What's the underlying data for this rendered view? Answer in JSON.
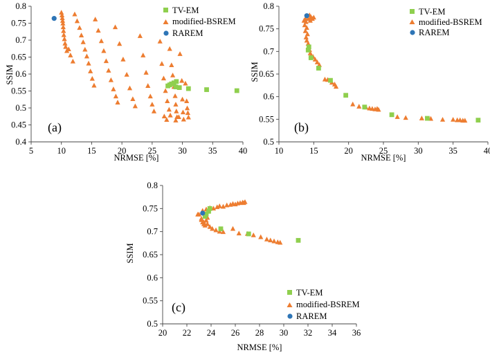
{
  "colors": {
    "tv_em": "#8fcf4e",
    "bsrem": "#ed7d31",
    "rarem": "#2e75b6"
  },
  "chart_data": [
    {
      "type": "scatter",
      "panel_label": "(a)",
      "xlabel": "NRMSE [%]",
      "ylabel": "SSIM",
      "xlim": [
        5,
        40
      ],
      "ylim": [
        0.4,
        0.8
      ],
      "xticks": [
        "5",
        "10",
        "15",
        "20",
        "25",
        "30",
        "35",
        "40"
      ],
      "yticks": [
        "0.4",
        "0.45",
        "0.5",
        "0.55",
        "0.6",
        "0.65",
        "0.7",
        "0.75",
        "0.8"
      ],
      "legend_position": "top-right",
      "series": [
        {
          "name": "TV-EM",
          "marker": "square",
          "color": "#8fcf4e",
          "points": [
            [
              39.0,
              0.551
            ],
            [
              34.0,
              0.554
            ],
            [
              31.0,
              0.557
            ],
            [
              29.5,
              0.56
            ],
            [
              29.0,
              0.578
            ],
            [
              28.6,
              0.574
            ],
            [
              28.2,
              0.571
            ],
            [
              27.9,
              0.568
            ],
            [
              27.6,
              0.565
            ],
            [
              28.9,
              0.562
            ]
          ]
        },
        {
          "name": "modified-BSREM",
          "marker": "triangle",
          "color": "#ed7d31",
          "points": [
            [
              10.0,
              0.781
            ],
            [
              10.1,
              0.773
            ],
            [
              10.15,
              0.765
            ],
            [
              10.2,
              0.757
            ],
            [
              10.25,
              0.749
            ],
            [
              10.3,
              0.738
            ],
            [
              10.35,
              0.727
            ],
            [
              10.4,
              0.715
            ],
            [
              10.5,
              0.703
            ],
            [
              10.6,
              0.69
            ],
            [
              10.7,
              0.68
            ],
            [
              10.9,
              0.668
            ],
            [
              11.2,
              0.673
            ],
            [
              11.5,
              0.655
            ],
            [
              11.9,
              0.637
            ],
            [
              12.2,
              0.776
            ],
            [
              12.6,
              0.756
            ],
            [
              13.0,
              0.736
            ],
            [
              13.3,
              0.714
            ],
            [
              13.6,
              0.694
            ],
            [
              13.9,
              0.672
            ],
            [
              14.2,
              0.652
            ],
            [
              14.5,
              0.631
            ],
            [
              14.8,
              0.608
            ],
            [
              15.1,
              0.586
            ],
            [
              15.4,
              0.566
            ],
            [
              15.6,
              0.761
            ],
            [
              16.1,
              0.728
            ],
            [
              16.6,
              0.697
            ],
            [
              17.0,
              0.668
            ],
            [
              17.4,
              0.638
            ],
            [
              17.8,
              0.61
            ],
            [
              18.2,
              0.582
            ],
            [
              18.6,
              0.555
            ],
            [
              19.0,
              0.534
            ],
            [
              19.3,
              0.516
            ],
            [
              18.9,
              0.738
            ],
            [
              19.6,
              0.689
            ],
            [
              20.2,
              0.643
            ],
            [
              20.8,
              0.598
            ],
            [
              21.3,
              0.558
            ],
            [
              21.8,
              0.526
            ],
            [
              22.2,
              0.505
            ],
            [
              23.0,
              0.712
            ],
            [
              23.5,
              0.655
            ],
            [
              24.0,
              0.604
            ],
            [
              24.3,
              0.565
            ],
            [
              24.7,
              0.534
            ],
            [
              25.0,
              0.51
            ],
            [
              25.3,
              0.49
            ],
            [
              26.3,
              0.696
            ],
            [
              26.6,
              0.63
            ],
            [
              26.9,
              0.587
            ],
            [
              27.2,
              0.55
            ],
            [
              27.5,
              0.52
            ],
            [
              27.8,
              0.495
            ],
            [
              28.0,
              0.478
            ],
            [
              27.4,
              0.465
            ],
            [
              27.0,
              0.475
            ],
            [
              27.9,
              0.674
            ],
            [
              28.2,
              0.626
            ],
            [
              28.4,
              0.596
            ],
            [
              28.6,
              0.562
            ],
            [
              28.8,
              0.535
            ],
            [
              28.9,
              0.51
            ],
            [
              29.0,
              0.49
            ],
            [
              29.1,
              0.473
            ],
            [
              28.9,
              0.463
            ],
            [
              29.6,
              0.659
            ],
            [
              29.9,
              0.58
            ],
            [
              30.0,
              0.525
            ],
            [
              30.1,
              0.487
            ],
            [
              30.2,
              0.466
            ],
            [
              29.4,
              0.473
            ],
            [
              30.5,
              0.572
            ],
            [
              30.7,
              0.52
            ],
            [
              30.8,
              0.499
            ],
            [
              30.9,
              0.485
            ],
            [
              31.0,
              0.472
            ]
          ]
        },
        {
          "name": "RAREM",
          "marker": "circle",
          "color": "#2e75b6",
          "points": [
            [
              8.8,
              0.764
            ]
          ]
        }
      ]
    },
    {
      "type": "scatter",
      "panel_label": "(b)",
      "xlabel": "NRMSE [%]",
      "ylabel": "SSIM",
      "xlim": [
        10,
        40
      ],
      "ylim": [
        0.5,
        0.8
      ],
      "xticks": [
        "10",
        "15",
        "20",
        "25",
        "30",
        "35",
        "40"
      ],
      "yticks": [
        "0.5",
        "0.55",
        "0.6",
        "0.65",
        "0.7",
        "0.75",
        "0.8"
      ],
      "legend_position": "top-right",
      "series": [
        {
          "name": "TV-EM",
          "marker": "square",
          "color": "#8fcf4e",
          "points": [
            [
              38.6,
              0.548
            ],
            [
              31.3,
              0.552
            ],
            [
              26.2,
              0.56
            ],
            [
              22.3,
              0.577
            ],
            [
              19.6,
              0.603
            ],
            [
              17.4,
              0.636
            ],
            [
              15.7,
              0.663
            ],
            [
              14.6,
              0.686
            ],
            [
              14.2,
              0.703
            ],
            [
              14.3,
              0.71
            ]
          ]
        },
        {
          "name": "modified-BSREM",
          "marker": "triangle",
          "color": "#ed7d31",
          "points": [
            [
              13.8,
              0.772
            ],
            [
              13.9,
              0.765
            ],
            [
              13.7,
              0.758
            ],
            [
              14.0,
              0.752
            ],
            [
              13.8,
              0.745
            ],
            [
              14.1,
              0.738
            ],
            [
              13.9,
              0.731
            ],
            [
              14.0,
              0.724
            ],
            [
              14.2,
              0.717
            ],
            [
              14.3,
              0.71
            ],
            [
              14.4,
              0.703
            ],
            [
              14.5,
              0.696
            ],
            [
              14.6,
              0.69
            ],
            [
              14.4,
              0.78
            ],
            [
              14.6,
              0.776
            ],
            [
              14.8,
              0.772
            ],
            [
              14.5,
              0.768
            ],
            [
              15.0,
              0.775
            ],
            [
              14.2,
              0.772
            ],
            [
              13.6,
              0.768
            ],
            [
              14.9,
              0.688
            ],
            [
              15.2,
              0.682
            ],
            [
              15.5,
              0.676
            ],
            [
              15.8,
              0.67
            ],
            [
              16.6,
              0.638
            ],
            [
              17.0,
              0.637
            ],
            [
              17.6,
              0.631
            ],
            [
              18.0,
              0.627
            ],
            [
              18.2,
              0.622
            ],
            [
              20.6,
              0.583
            ],
            [
              21.5,
              0.578
            ],
            [
              22.5,
              0.576
            ],
            [
              23.0,
              0.574
            ],
            [
              23.4,
              0.573
            ],
            [
              23.8,
              0.572
            ],
            [
              24.1,
              0.573
            ],
            [
              24.3,
              0.571
            ],
            [
              27.0,
              0.555
            ],
            [
              28.2,
              0.553
            ],
            [
              30.5,
              0.552
            ],
            [
              31.8,
              0.551
            ],
            [
              33.5,
              0.549
            ],
            [
              35.0,
              0.549
            ],
            [
              35.6,
              0.548
            ],
            [
              36.0,
              0.548
            ],
            [
              36.4,
              0.547
            ],
            [
              36.7,
              0.547
            ]
          ]
        },
        {
          "name": "RAREM",
          "marker": "circle",
          "color": "#2e75b6",
          "points": [
            [
              14.0,
              0.779
            ]
          ]
        }
      ]
    },
    {
      "type": "scatter",
      "panel_label": "(c)",
      "xlabel": "NRMSE [%]",
      "ylabel": "SSIM",
      "xlim": [
        20,
        36
      ],
      "ylim": [
        0.5,
        0.8
      ],
      "xticks": [
        "20",
        "22",
        "24",
        "26",
        "28",
        "30",
        "32",
        "34",
        "36"
      ],
      "yticks": [
        "0.5",
        "0.55",
        "0.6",
        "0.65",
        "0.7",
        "0.75",
        "0.8"
      ],
      "legend_position": "bottom-left",
      "series": [
        {
          "name": "TV-EM",
          "marker": "square",
          "color": "#8fcf4e",
          "points": [
            [
              31.2,
              0.681
            ],
            [
              27.1,
              0.695
            ],
            [
              24.8,
              0.706
            ],
            [
              23.9,
              0.75
            ],
            [
              23.8,
              0.744
            ],
            [
              23.6,
              0.738
            ],
            [
              23.5,
              0.733
            ]
          ]
        },
        {
          "name": "modified-BSREM",
          "marker": "triangle",
          "color": "#ed7d31",
          "points": [
            [
              23.2,
              0.725
            ],
            [
              23.3,
              0.72
            ],
            [
              23.4,
              0.716
            ],
            [
              23.5,
              0.713
            ],
            [
              23.7,
              0.716
            ],
            [
              23.9,
              0.71
            ],
            [
              24.1,
              0.706
            ],
            [
              24.4,
              0.703
            ],
            [
              24.7,
              0.7
            ],
            [
              25.0,
              0.699
            ],
            [
              25.8,
              0.706
            ],
            [
              26.3,
              0.696
            ],
            [
              27.0,
              0.695
            ],
            [
              27.5,
              0.692
            ],
            [
              28.1,
              0.688
            ],
            [
              28.6,
              0.683
            ],
            [
              28.9,
              0.681
            ],
            [
              29.2,
              0.679
            ],
            [
              29.5,
              0.677
            ],
            [
              29.7,
              0.676
            ],
            [
              23.0,
              0.737
            ],
            [
              23.3,
              0.745
            ],
            [
              23.6,
              0.748
            ],
            [
              23.9,
              0.751
            ],
            [
              24.2,
              0.75
            ],
            [
              24.5,
              0.753
            ],
            [
              24.7,
              0.755
            ],
            [
              25.0,
              0.754
            ],
            [
              25.3,
              0.757
            ],
            [
              25.6,
              0.758
            ],
            [
              25.8,
              0.76
            ],
            [
              26.0,
              0.759
            ],
            [
              26.2,
              0.761
            ],
            [
              26.4,
              0.762
            ],
            [
              26.6,
              0.763
            ],
            [
              26.7,
              0.762
            ],
            [
              26.8,
              0.764
            ],
            [
              23.4,
              0.72
            ],
            [
              23.2,
              0.728
            ],
            [
              23.6,
              0.724
            ],
            [
              23.7,
              0.73
            ],
            [
              23.3,
              0.742
            ],
            [
              22.9,
              0.737
            ]
          ]
        },
        {
          "name": "RAREM",
          "marker": "circle",
          "color": "#2e75b6",
          "points": [
            [
              23.3,
              0.74
            ]
          ]
        }
      ]
    }
  ]
}
